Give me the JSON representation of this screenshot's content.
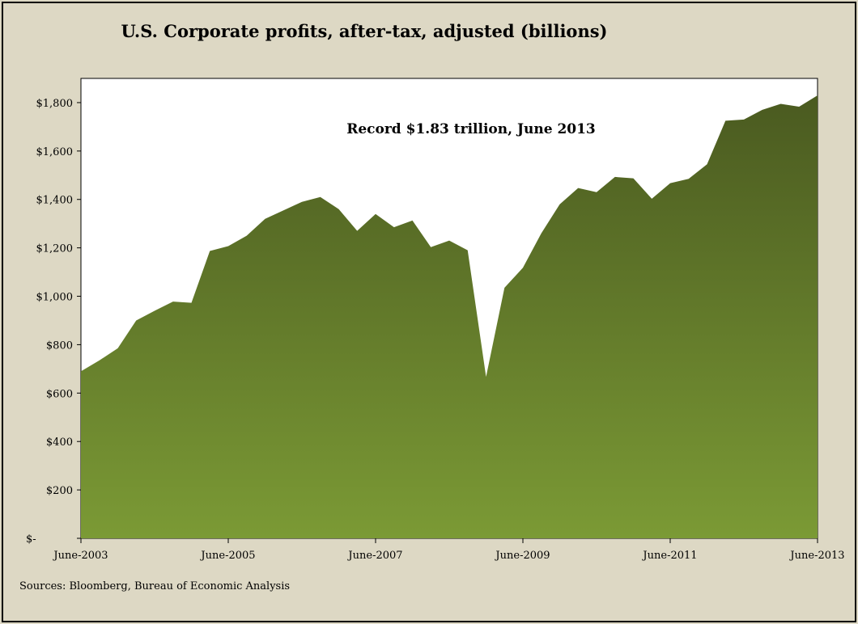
{
  "chart_data": {
    "type": "area",
    "title": "U.S. Corporate profits, after-tax, adjusted (billions)",
    "annotation": "Record $1.83 trillion, June 2013",
    "source": "Sources: Bloomberg, Bureau of Economic Analysis",
    "xlabel": "",
    "ylabel": "",
    "ylim": [
      0,
      1900
    ],
    "y_ticks": [
      0,
      200,
      400,
      600,
      800,
      1000,
      1200,
      1400,
      1600,
      1800
    ],
    "y_tick_labels": [
      "$-",
      "$200",
      "$400",
      "$600",
      "$800",
      "$1,000",
      "$1,200",
      "$1,400",
      "$1,600",
      "$1,800"
    ],
    "x_tick_labels": [
      "June-2003",
      "June-2005",
      "June-2007",
      "June-2009",
      "June-2011",
      "June-2013"
    ],
    "x_tick_index": [
      0,
      8,
      16,
      24,
      32,
      40
    ],
    "grid": false,
    "colors": {
      "area_top": "#4a5a20",
      "area_bottom": "#7b9a35",
      "plot_bg": "#ffffff",
      "page_bg": "#ddd8c4"
    },
    "series": [
      {
        "values": [
          690,
          735,
          785,
          900,
          940,
          978,
          973,
          1187,
          1207,
          1250,
          1320,
          1355,
          1390,
          1410,
          1360,
          1270,
          1340,
          1285,
          1313,
          1203,
          1230,
          1190,
          667,
          1035,
          1118,
          1260,
          1380,
          1447,
          1430,
          1493,
          1487,
          1403,
          1467,
          1485,
          1545,
          1725,
          1730,
          1770,
          1795,
          1783,
          1830
        ]
      }
    ]
  }
}
